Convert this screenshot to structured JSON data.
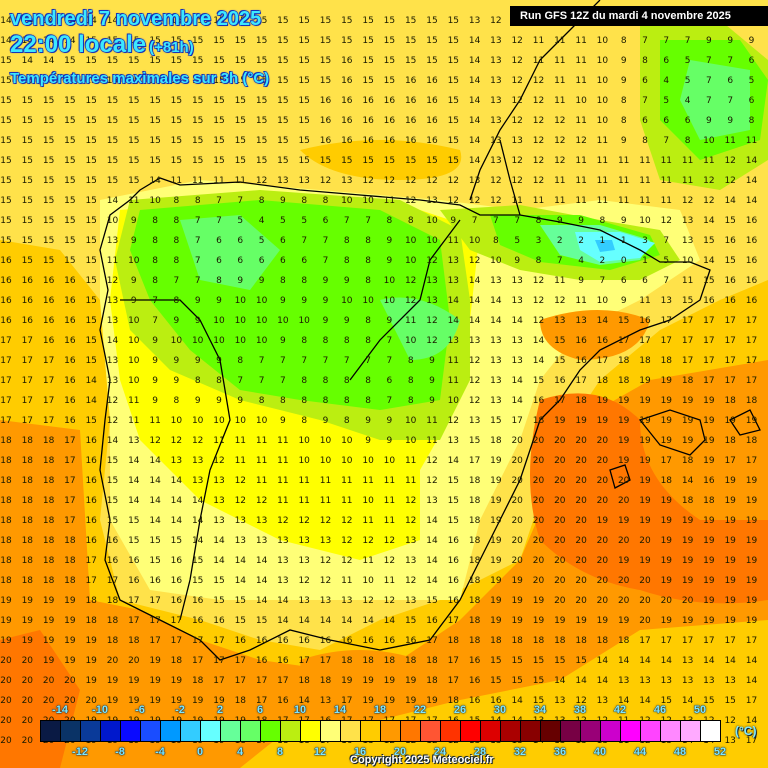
{
  "header": {
    "date": "vendredi 7 novembre 2025",
    "time": "22:00 locale",
    "offset": "(+81h)",
    "variable": "Températures maximales sur 3h (°C)"
  },
  "run_banner": "Run GFS 12Z du mardi 4 novembre 2025",
  "copyright": "Copyright 2025 Meteociel.fr",
  "legend": {
    "unit": "(°C)",
    "top_labels": [
      "-14",
      "-10",
      "-6",
      "-2",
      "2",
      "6",
      "10",
      "14",
      "18",
      "22",
      "26",
      "30",
      "34",
      "38",
      "42",
      "46",
      "50"
    ],
    "bottom_labels": [
      "-12",
      "-8",
      "-4",
      "0",
      "4",
      "8",
      "12",
      "16",
      "20",
      "24",
      "28",
      "32",
      "36",
      "40",
      "44",
      "48",
      "52"
    ],
    "colors": [
      "#0a1a44",
      "#0a3366",
      "#0a3a99",
      "#0018cc",
      "#0a0aff",
      "#1a4dff",
      "#0099ff",
      "#33ccff",
      "#66ffff",
      "#66ff99",
      "#66ff66",
      "#66ff00",
      "#bbee11",
      "#ffff00",
      "#ffff77",
      "#ffe24a",
      "#ffcc00",
      "#ff9900",
      "#ff7700",
      "#ff5533",
      "#ff3300",
      "#ff0000",
      "#dd0000",
      "#aa0000",
      "#880000",
      "#660000",
      "#770044",
      "#990077",
      "#cc00cc",
      "#ff00ff",
      "#ff44ff",
      "#ff88ff",
      "#ffaaff",
      "#ffffff"
    ]
  },
  "map_regions": [
    {
      "name": "atlantic-west",
      "value_range": "14-20"
    },
    {
      "name": "pyrenees-cold-core",
      "value_range": "0-7"
    },
    {
      "name": "northern-meseta",
      "value_range": "5-11"
    },
    {
      "name": "mediterranean-sea",
      "value_range": "18-20"
    },
    {
      "name": "balearic-islands",
      "value_range": "14-19"
    }
  ],
  "grid_rows": [
    "14 14 14 14 14 14 14 15 15 15 15 15 15 15 15 15 15 15 15 15 15 15 13 12 12 12 11 11 11 9 8 9 10 11 9 9",
    "14 14 14 14 15 15 15 15 15 15 15 15 15 15 15 15 15 15 15 15 15 15 14 13 12 11 11 11 10 8 7 7 7 9 9 9",
    "15 14 14 15 15 15 15 15 15 15 15 15 15 15 15 15 16 15 15 15 15 15 14 13 12 11 11 11 10 9 8 6 5 7 7 6",
    "15 15 15 15 15 15 15 15 15 15 15 15 15 15 15 15 16 15 15 16 16 15 14 13 12 12 11 11 10 9 6 4 5 7 6 5",
    "15 15 15 15 15 15 15 15 15 15 15 15 15 15 15 16 16 16 16 16 16 15 14 13 12 12 11 10 10 8 7 5 4 7 7 6",
    "15 15 15 15 15 15 15 15 15 15 15 15 15 15 15 16 16 16 16 16 16 15 14 13 12 12 12 11 10 8 6 6 6 9 9 8",
    "15 15 15 15 15 15 15 15 15 15 15 15 15 15 15 16 16 16 16 16 16 15 14 13 13 12 12 12 11 9 8 7 8 10 11 11",
    "15 15 15 15 15 15 15 15 15 15 15 15 15 15 15 15 15 15 15 15 15 15 14 13 12 12 12 11 11 11 11 11 11 11 12 14",
    "15 15 15 15 15 15 15 14 11 11 11 11 12 13 13 12 13 12 12 12 12 12 13 12 12 12 11 11 11 11 11 11 11 12 12 14",
    "15 15 15 15 15 14 11 10 8 8 7 7 8 9 8 8 10 10 11 12 13 12 12 12 11 11 11 11 11 11 11 11 12 12 14 14",
    "15 15 15 15 15 10 9 8 8 7 7 5 4 5 5 6 7 7 8 8 10 9 7 7 7 8 9 9 8 9 10 12 13 14 15 16",
    "15 15 15 15 15 13 9 8 8 7 6 6 5 6 7 7 8 8 9 10 10 11 10 8 5 3 2 2 1 1 3 7 13 15 16 16",
    "16 15 15 15 15 11 10 8 8 7 6 6 6 6 6 7 8 8 9 10 12 13 12 10 9 8 7 4 2 0 1 5 10 14 15 16",
    "16 16 16 16 15 12 9 8 7 7 8 9 9 8 8 9 9 8 10 12 13 13 14 13 13 12 11 9 7 6 6 7 11 15 16 16",
    "16 16 16 16 15 13 9 7 8 9 9 10 10 9 9 9 10 10 10 12 13 14 14 14 13 12 12 11 10 9 11 13 15 16 16 16",
    "16 16 16 16 15 13 10 7 9 9 10 10 10 10 10 9 9 8 9 11 12 14 14 14 14 12 13 13 14 15 16 17 17 17 17 17",
    "17 17 16 16 15 14 10 9 10 10 10 10 10 9 8 8 8 8 7 10 12 13 13 13 13 14 15 16 16 17 17 17 17 17 17 17",
    "17 17 17 16 15 13 10 9 9 9 9 8 7 7 7 7 7 7 7 8 9 11 12 13 13 14 15 16 17 18 18 18 17 17 17 17",
    "17 17 17 16 14 13 10 9 9 8 8 7 7 7 8 8 8 8 6 8 9 11 12 13 14 15 16 17 18 18 19 19 18 17 17 17",
    "17 17 17 16 14 12 11 9 8 9 9 9 8 8 8 8 8 8 7 8 9 10 12 13 14 16 17 18 19 19 19 19 19 19 18 18",
    "17 17 17 16 15 12 11 11 10 10 10 10 10 9 8 9 8 9 9 10 11 12 13 15 17 18 19 19 19 19 19 19 19 19 19 19",
    "18 18 18 17 16 14 13 12 12 12 11 11 11 11 10 10 10 9 9 10 11 13 15 18 20 20 20 20 20 19 19 19 19 19 18 18",
    "18 18 18 17 16 15 14 14 13 13 12 11 11 11 10 10 10 10 10 11 12 14 17 19 20 20 20 20 20 19 19 17 18 19 17 17",
    "18 18 18 17 16 15 14 14 14 13 13 12 11 11 11 11 11 11 11 11 12 15 18 19 20 20 20 20 20 20 19 18 14 16 19 19",
    "18 18 18 17 16 15 14 14 14 14 13 12 12 11 11 11 11 10 11 12 13 15 18 19 20 20 20 20 20 20 19 19 18 18 19 19",
    "18 18 18 17 16 15 15 14 14 14 13 13 13 12 12 12 12 11 11 12 14 15 18 19 20 20 20 20 19 19 19 19 19 19 19 19",
    "18 18 18 18 16 16 15 15 15 14 14 13 13 13 13 13 12 12 12 13 14 16 18 19 20 20 20 20 20 20 20 19 19 19 19 19",
    "18 18 18 18 17 16 16 15 16 15 14 14 14 13 13 12 12 11 12 13 14 16 18 19 20 20 20 20 20 19 19 19 19 19 19 19",
    "18 18 18 18 17 17 16 16 16 15 15 14 14 13 12 12 11 10 11 12 14 16 18 19 19 20 20 20 20 20 20 19 19 19 19 19",
    "19 19 19 19 18 18 17 17 16 16 15 15 14 14 13 13 13 12 12 13 15 16 18 19 19 19 20 20 20 20 20 20 20 19 19 19",
    "19 19 19 19 18 18 17 17 17 16 16 15 15 14 14 14 14 14 14 15 16 17 18 19 19 19 19 19 19 19 20 19 19 19 19 19",
    "19 19 19 19 19 18 18 17 17 17 17 16 16 16 16 16 16 16 16 16 17 18 18 18 18 18 18 18 18 18 17 17 17 17 17 17",
    "20 20 19 19 19 20 20 19 18 17 17 17 16 16 17 17 18 18 18 18 18 17 16 15 15 15 15 15 14 14 14 14 13 14 14 14",
    "20 20 20 20 19 19 19 19 19 18 17 17 17 17 18 18 19 19 19 19 18 17 16 15 15 15 14 14 14 13 13 13 13 13 13 14",
    "20 20 20 20 20 19 19 19 19 19 19 18 17 16 14 13 17 19 19 19 19 18 16 16 14 15 13 12 13 14 14 15 14 15 15 17",
    "20 20 20 20 19 19 19 19 19 19 19 19 18 17 17 16 17 17 17 17 17 16 15 14 14 13 13 12 12 11 12 12 13 12 12 14",
    "20 20 20 20 19 19 19 19 19 19 19 18 17 18 18 17 16 13 12 12 12 12 13 13 13 14 13 13 13 11 12 13 14 14 13 17"
  ]
}
